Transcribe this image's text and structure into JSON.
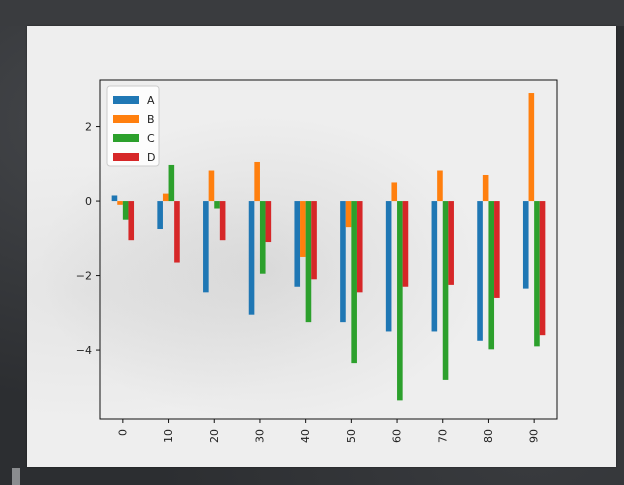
{
  "chart_data": {
    "type": "bar",
    "title": "",
    "xlabel": "",
    "ylabel": "",
    "categories": [
      "0",
      "10",
      "20",
      "30",
      "40",
      "50",
      "60",
      "70",
      "80",
      "90"
    ],
    "series": [
      {
        "name": "A",
        "color": "#1f77b4",
        "values": [
          0.15,
          -0.75,
          -2.45,
          -3.05,
          -2.3,
          -3.25,
          -3.5,
          -3.5,
          -3.75,
          -2.35
        ]
      },
      {
        "name": "B",
        "color": "#ff7f0e",
        "values": [
          -0.1,
          0.2,
          0.82,
          1.05,
          -1.5,
          -0.7,
          0.5,
          0.82,
          0.7,
          2.9
        ]
      },
      {
        "name": "C",
        "color": "#2ca02c",
        "values": [
          -0.5,
          0.97,
          -0.2,
          -1.95,
          -3.25,
          -4.35,
          -5.35,
          -4.8,
          -3.98,
          -3.9
        ]
      },
      {
        "name": "D",
        "color": "#d62728",
        "values": [
          -1.05,
          -1.65,
          -1.05,
          -1.1,
          -2.1,
          -2.45,
          -2.3,
          -2.25,
          -2.6,
          -3.6
        ]
      }
    ],
    "yticks": [
      "2",
      "0",
      "−2",
      "−4"
    ],
    "ytick_values": [
      2,
      0,
      -2,
      -4
    ],
    "ylim": [
      -5.85,
      3.25
    ],
    "grid": false,
    "legend": "top-left"
  }
}
